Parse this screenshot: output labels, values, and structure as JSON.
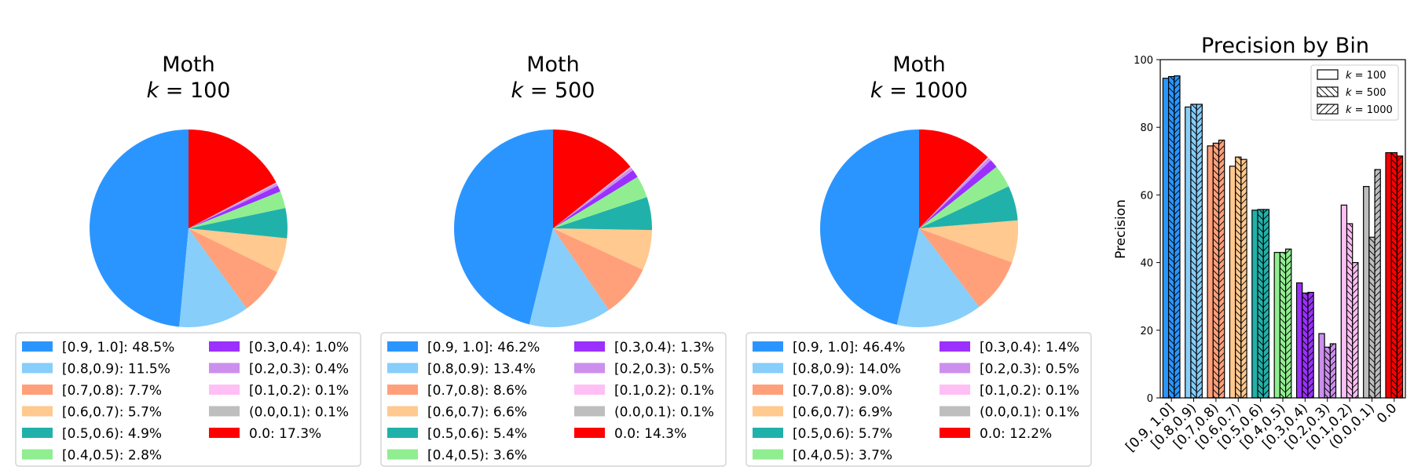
{
  "colors": {
    "bins": [
      "#2b95ff",
      "#87cefa",
      "#ffa07a",
      "#ffc98f",
      "#20b2aa",
      "#90ee90",
      "#9b30ff",
      "#cc8fee",
      "#ffbff5",
      "#bebebe",
      "#ff0000"
    ],
    "edge": "#000000"
  },
  "chart_data": [
    {
      "type": "pie",
      "title": "Moth",
      "subtitle_var": "k",
      "subtitle_eq": " = ",
      "subtitle_val": "100",
      "legend_placement": "below",
      "slices": [
        {
          "label": "[0.9, 1.0]",
          "value": 48.5
        },
        {
          "label": "[0.8,0.9)",
          "value": 11.5
        },
        {
          "label": "[0.7,0.8)",
          "value": 7.7
        },
        {
          "label": "[0.6,0.7)",
          "value": 5.7
        },
        {
          "label": "[0.5,0.6)",
          "value": 4.9
        },
        {
          "label": "[0.4,0.5)",
          "value": 2.8
        },
        {
          "label": "[0.3,0.4)",
          "value": 1.0
        },
        {
          "label": "[0.2,0.3)",
          "value": 0.4
        },
        {
          "label": "[0.1,0.2)",
          "value": 0.1
        },
        {
          "label": "(0.0,0.1)",
          "value": 0.1
        },
        {
          "label": "0.0",
          "value": 17.3
        }
      ],
      "legend_texts": [
        "[0.9, 1.0]: 48.5%",
        "[0.8,0.9): 11.5%",
        "[0.7,0.8): 7.7%",
        "[0.6,0.7): 5.7%",
        "[0.5,0.6): 4.9%",
        "[0.4,0.5): 2.8%",
        "[0.3,0.4): 1.0%",
        "[0.2,0.3): 0.4%",
        "[0.1,0.2): 0.1%",
        "(0.0,0.1): 0.1%",
        "0.0: 17.3%"
      ]
    },
    {
      "type": "pie",
      "title": "Moth",
      "subtitle_var": "k",
      "subtitle_eq": " = ",
      "subtitle_val": "500",
      "legend_placement": "below",
      "slices": [
        {
          "label": "[0.9, 1.0]",
          "value": 46.2
        },
        {
          "label": "[0.8,0.9)",
          "value": 13.4
        },
        {
          "label": "[0.7,0.8)",
          "value": 8.6
        },
        {
          "label": "[0.6,0.7)",
          "value": 6.6
        },
        {
          "label": "[0.5,0.6)",
          "value": 5.4
        },
        {
          "label": "[0.4,0.5)",
          "value": 3.6
        },
        {
          "label": "[0.3,0.4)",
          "value": 1.3
        },
        {
          "label": "[0.2,0.3)",
          "value": 0.5
        },
        {
          "label": "[0.1,0.2)",
          "value": 0.1
        },
        {
          "label": "(0.0,0.1)",
          "value": 0.1
        },
        {
          "label": "0.0",
          "value": 14.3
        }
      ],
      "legend_texts": [
        "[0.9, 1.0]: 46.2%",
        "[0.8,0.9): 13.4%",
        "[0.7,0.8): 8.6%",
        "[0.6,0.7): 6.6%",
        "[0.5,0.6): 5.4%",
        "[0.4,0.5): 3.6%",
        "[0.3,0.4): 1.3%",
        "[0.2,0.3): 0.5%",
        "[0.1,0.2): 0.1%",
        "(0.0,0.1): 0.1%",
        "0.0: 14.3%"
      ]
    },
    {
      "type": "pie",
      "title": "Moth",
      "subtitle_var": "k",
      "subtitle_eq": " = ",
      "subtitle_val": "1000",
      "legend_placement": "below",
      "slices": [
        {
          "label": "[0.9, 1.0]",
          "value": 46.4
        },
        {
          "label": "[0.8,0.9)",
          "value": 14.0
        },
        {
          "label": "[0.7,0.8)",
          "value": 9.0
        },
        {
          "label": "[0.6,0.7)",
          "value": 6.9
        },
        {
          "label": "[0.5,0.6)",
          "value": 5.7
        },
        {
          "label": "[0.4,0.5)",
          "value": 3.7
        },
        {
          "label": "[0.3,0.4)",
          "value": 1.4
        },
        {
          "label": "[0.2,0.3)",
          "value": 0.5
        },
        {
          "label": "[0.1,0.2)",
          "value": 0.1
        },
        {
          "label": "(0.0,0.1)",
          "value": 0.1
        },
        {
          "label": "0.0",
          "value": 12.2
        }
      ],
      "legend_texts": [
        "[0.9, 1.0]: 46.4%",
        "[0.8,0.9): 14.0%",
        "[0.7,0.8): 9.0%",
        "[0.6,0.7): 6.9%",
        "[0.5,0.6): 5.7%",
        "[0.4,0.5): 3.7%",
        "[0.3,0.4): 1.4%",
        "[0.2,0.3): 0.5%",
        "[0.1,0.2): 0.1%",
        "(0.0,0.1): 0.1%",
        "0.0: 12.2%"
      ]
    },
    {
      "type": "bar",
      "title": "Precision by Bin",
      "xlabel": "",
      "ylabel": "Precision",
      "ylim": [
        0,
        100
      ],
      "yticks": [
        0,
        20,
        40,
        60,
        80,
        100
      ],
      "grid": false,
      "legend_placement": "top-right",
      "categories": [
        "[0.9, 1.0]",
        "[0.8,0.9)",
        "[0.7,0.8)",
        "[0.6,0.7)",
        "[0.5,0.6)",
        "[0.4,0.5)",
        "[0.3,0.4)",
        "[0.2,0.3)",
        "[0.1,0.2)",
        "(0.0,0.1)",
        "0.0"
      ],
      "series": [
        {
          "name_var": "k",
          "name_eq": " = ",
          "name_val": "100",
          "hatch": "none",
          "values": [
            94.5,
            86.0,
            74.5,
            68.5,
            55.5,
            43.0,
            34.0,
            19.0,
            57.0,
            62.5,
            72.5
          ]
        },
        {
          "name_var": "k",
          "name_eq": " = ",
          "name_val": "500",
          "hatch": "backslash",
          "values": [
            95.0,
            86.8,
            75.3,
            71.2,
            55.7,
            43.0,
            31.0,
            15.0,
            51.5,
            47.5,
            72.5
          ]
        },
        {
          "name_var": "k",
          "name_eq": " = ",
          "name_val": "1000",
          "hatch": "slash",
          "values": [
            95.2,
            86.8,
            76.2,
            70.5,
            55.7,
            44.0,
            31.2,
            16.0,
            40.0,
            67.5,
            71.5
          ]
        }
      ]
    }
  ]
}
